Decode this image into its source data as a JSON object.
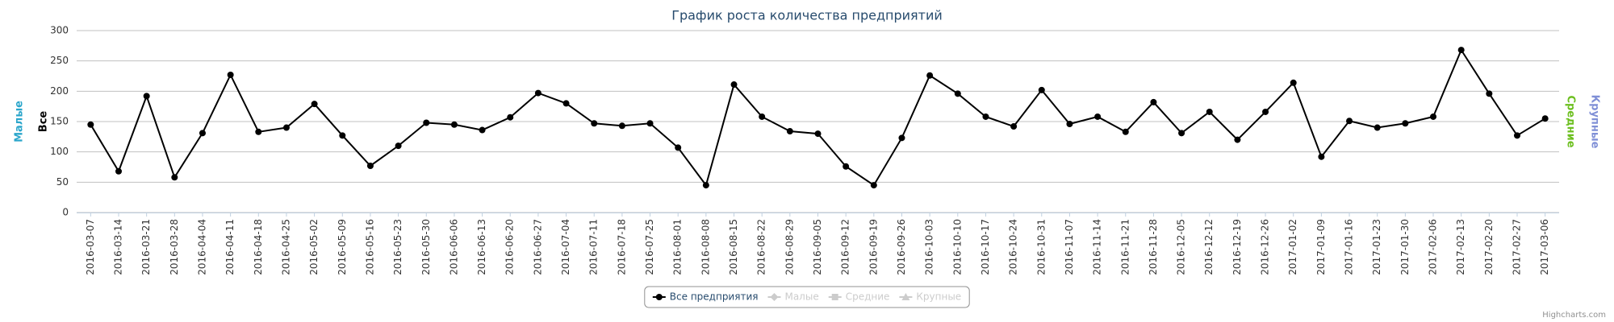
{
  "chart_data": {
    "type": "line",
    "title": "График роста количества предприятий",
    "categories": [
      "2016-03-07",
      "2016-03-14",
      "2016-03-21",
      "2016-03-28",
      "2016-04-04",
      "2016-04-11",
      "2016-04-18",
      "2016-04-25",
      "2016-05-02",
      "2016-05-09",
      "2016-05-16",
      "2016-05-23",
      "2016-05-30",
      "2016-06-06",
      "2016-06-13",
      "2016-06-20",
      "2016-06-27",
      "2016-07-04",
      "2016-07-11",
      "2016-07-18",
      "2016-07-25",
      "2016-08-01",
      "2016-08-08",
      "2016-08-15",
      "2016-08-22",
      "2016-08-29",
      "2016-09-05",
      "2016-09-12",
      "2016-09-19",
      "2016-09-26",
      "2016-10-03",
      "2016-10-10",
      "2016-10-17",
      "2016-10-24",
      "2016-10-31",
      "2016-11-07",
      "2016-11-14",
      "2016-11-21",
      "2016-11-28",
      "2016-12-05",
      "2016-12-12",
      "2016-12-19",
      "2016-12-26",
      "2017-01-02",
      "2017-01-09",
      "2017-01-16",
      "2017-01-23",
      "2017-01-30",
      "2017-02-06",
      "2017-02-13",
      "2017-02-20",
      "2017-02-27",
      "2017-03-06"
    ],
    "series": [
      {
        "name": "Все предприятия",
        "color": "#000000",
        "marker": "circle",
        "visible": true,
        "values": [
          145,
          68,
          192,
          58,
          131,
          227,
          133,
          140,
          179,
          127,
          77,
          110,
          148,
          145,
          136,
          157,
          197,
          180,
          147,
          143,
          147,
          107,
          45,
          211,
          158,
          134,
          130,
          76,
          45,
          123,
          226,
          196,
          158,
          142,
          202,
          146,
          158,
          133,
          182,
          131,
          166,
          120,
          166,
          214,
          92,
          151,
          140,
          147,
          158,
          268,
          196,
          127,
          155
        ]
      },
      {
        "name": "Малые",
        "color": "#2ba6cb",
        "marker": "diamond",
        "visible": false
      },
      {
        "name": "Средние",
        "color": "#6cbf1f",
        "marker": "square",
        "visible": false
      },
      {
        "name": "Крупные",
        "color": "#7f8fd6",
        "marker": "triangle",
        "visible": false
      }
    ],
    "y_axis_titles": [
      {
        "text": "Малые",
        "color": "#2ba6cb",
        "side": "left"
      },
      {
        "text": "Все",
        "color": "#000000",
        "side": "left"
      },
      {
        "text": "Средние",
        "color": "#6cbf1f",
        "side": "right"
      },
      {
        "text": "Крупные",
        "color": "#7f8fd6",
        "side": "right"
      }
    ],
    "ylim": [
      0,
      300
    ],
    "yticks": [
      0,
      50,
      100,
      150,
      200,
      250,
      300
    ],
    "grid": true,
    "legend": "bottom",
    "credits": "Highcharts.com"
  }
}
